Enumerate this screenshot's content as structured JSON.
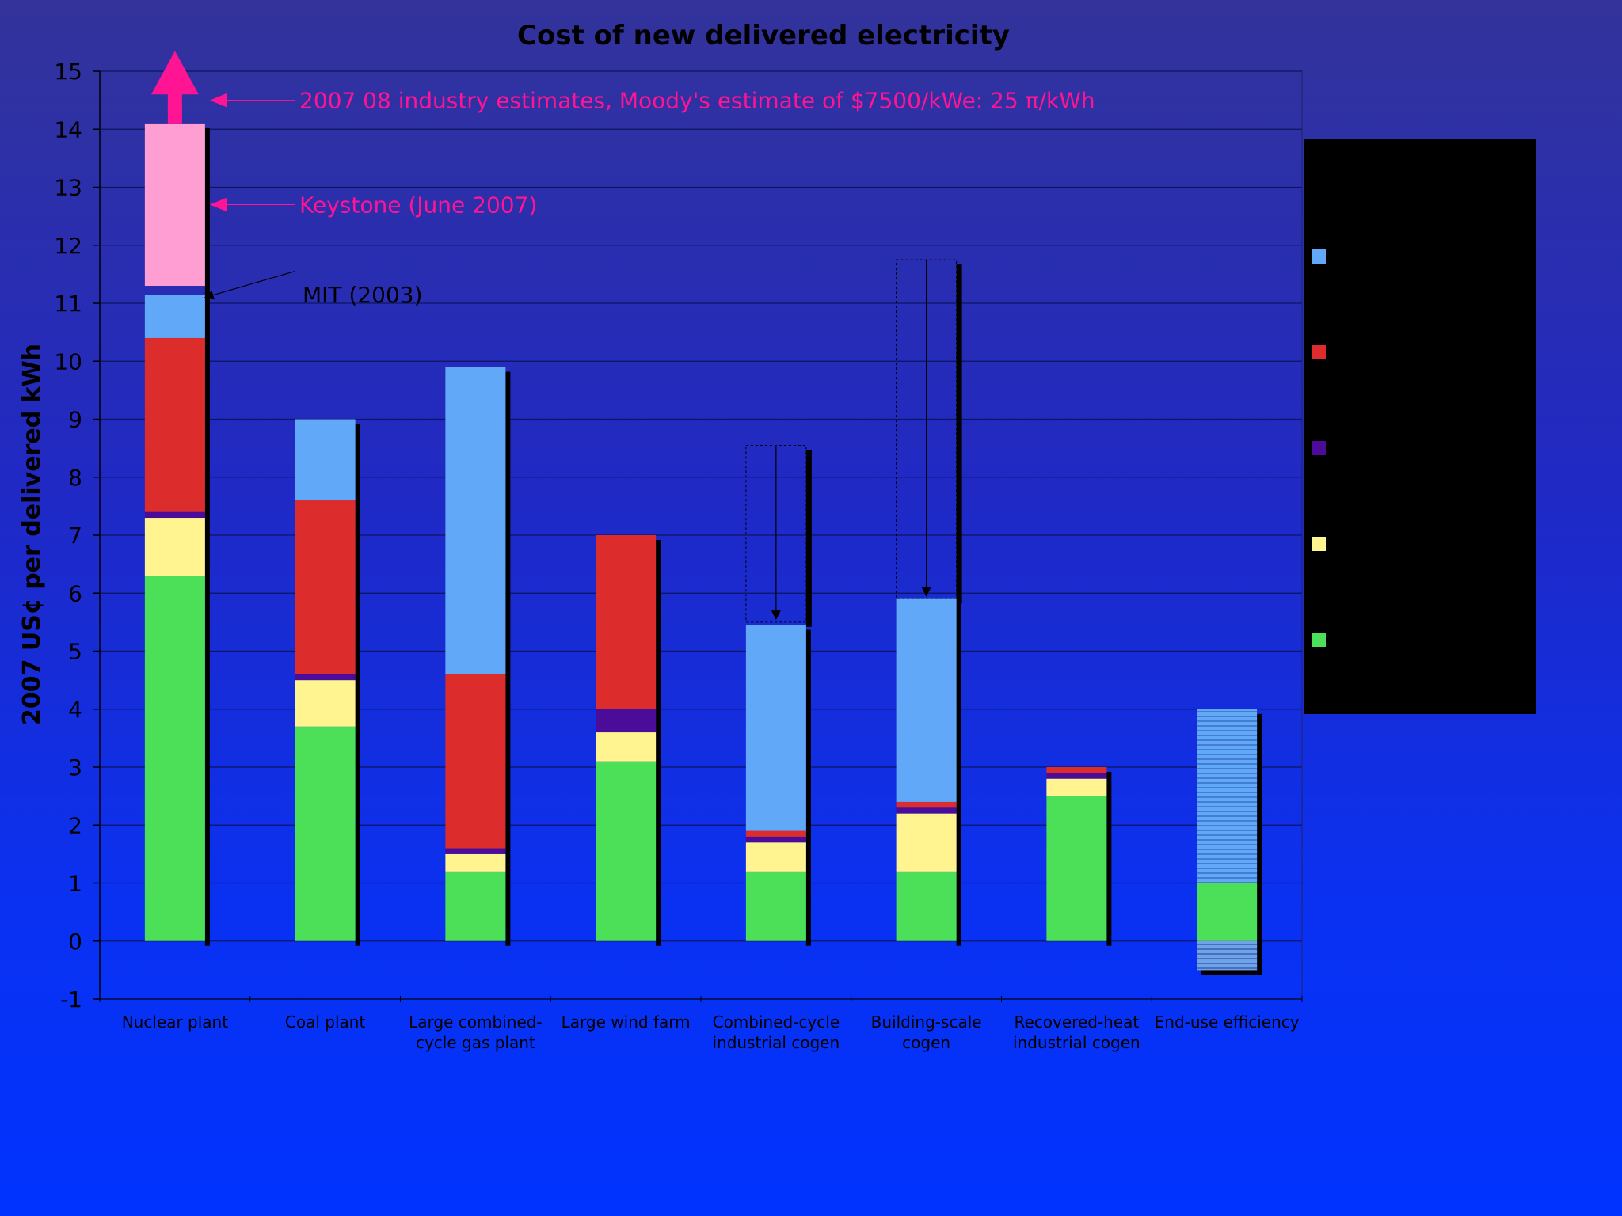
{
  "chart_data": {
    "type": "bar",
    "stacked": true,
    "title": "Cost of new delivered electricity",
    "ylabel": "2007 US¢ per delivered kWh",
    "xlabel": "",
    "ylim": [
      -1,
      15
    ],
    "yticks": [
      -1,
      0,
      1,
      2,
      3,
      4,
      5,
      6,
      7,
      8,
      9,
      10,
      11,
      12,
      13,
      14,
      15
    ],
    "grid": true,
    "categories": [
      [
        "Nuclear plant"
      ],
      [
        "Coal plant"
      ],
      [
        "Large combined-",
        "cycle gas plant"
      ],
      [
        "Large wind farm"
      ],
      [
        "Combined-cycle",
        "industrial cogen"
      ],
      [
        "Building-scale",
        "cogen"
      ],
      [
        "Recovered-heat",
        "industrial cogen"
      ],
      [
        "End-use efficiency"
      ]
    ],
    "series": [
      {
        "key": "green",
        "color": "#4cdf58",
        "values": [
          6.3,
          3.7,
          1.2,
          3.1,
          1.2,
          1.2,
          2.5,
          1.0
        ]
      },
      {
        "key": "yellow",
        "color": "#fff48f",
        "values": [
          1.0,
          0.8,
          0.3,
          0.5,
          0.5,
          1.0,
          0.3,
          0
        ]
      },
      {
        "key": "purple",
        "color": "#4b0c9a",
        "values": [
          0.1,
          0.1,
          0.1,
          0.4,
          0.1,
          0.1,
          0.1,
          0
        ]
      },
      {
        "key": "red",
        "color": "#dc2c2c",
        "values": [
          3.0,
          3.0,
          3.0,
          3.0,
          0.1,
          0.1,
          0.1,
          0
        ]
      },
      {
        "key": "blue",
        "color": "#62a8f8",
        "values": [
          0.75,
          1.4,
          5.3,
          0,
          3.55,
          3.5,
          0,
          3.0
        ]
      }
    ],
    "extras": {
      "nuclear_keystone_top": 14.1,
      "end_use_negative": -0.5,
      "cogen_dashed_tops": [
        {
          "category": 4,
          "from": 8.55,
          "to": 5.5
        },
        {
          "category": 5,
          "from": 11.75,
          "to": 5.9
        }
      ]
    },
    "annotations": [
      {
        "text": "2007   08 industry estimates, Moody's estimate of $7500/kWe: 25 π/kWh",
        "y": 14.5
      },
      {
        "text": "Keystone (June 2007)",
        "y": 12.7
      },
      {
        "text": "MIT (2003)",
        "y": 11.15
      }
    ],
    "legend": {
      "position": "right",
      "background": "#000000",
      "entries": [
        {
          "color": "#62a8f8",
          "label": ""
        },
        {
          "color": "#dc2c2c",
          "label": ""
        },
        {
          "color": "#4b0c9a",
          "label": ""
        },
        {
          "color": "#fff48f",
          "label": ""
        },
        {
          "color": "#4cdf58",
          "label": ""
        }
      ]
    }
  }
}
